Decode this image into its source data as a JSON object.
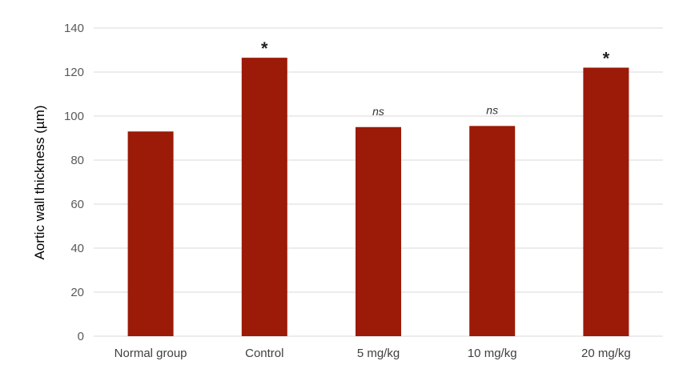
{
  "chart_data": {
    "type": "bar",
    "categories": [
      "Normal group",
      "Control",
      "5 mg/kg",
      "10 mg/kg",
      "20 mg/kg"
    ],
    "values": [
      93,
      126.5,
      95,
      95.5,
      122
    ],
    "annotations": [
      "",
      "*",
      "ns",
      "ns",
      "*"
    ],
    "title": "",
    "xlabel": "",
    "ylabel": "Aortic wall thickness (µm)",
    "ylim": [
      0,
      140
    ],
    "yticks": [
      0,
      20,
      40,
      60,
      80,
      100,
      120,
      140
    ],
    "grid": true,
    "legend": "none",
    "bar_color": "#9b1a08"
  }
}
